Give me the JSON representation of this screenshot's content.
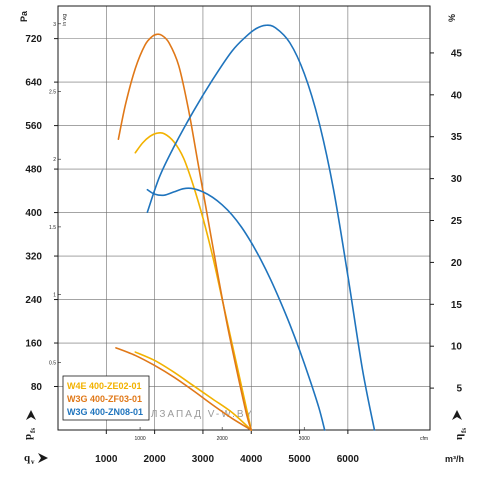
{
  "chart_data": {
    "type": "line",
    "units": {
      "left": "Pa",
      "left_inner": "in wg",
      "right": "%",
      "bottom_inner": "cfm",
      "bottom": "m³/h"
    },
    "axis_symbols": {
      "pressure": "p",
      "pressure_sub": "fs",
      "flow": "q",
      "flow_sub": "v",
      "efficiency": "η",
      "efficiency_sub": "fs"
    },
    "ylim": [
      0,
      780
    ],
    "xlim": [
      0,
      7700
    ],
    "y_left_ticks": [
      80,
      160,
      240,
      320,
      400,
      480,
      560,
      640,
      720
    ],
    "y_inwg_ticks": [
      {
        "value": 0.5,
        "label": "0.5"
      },
      {
        "value": 1,
        "label": "1"
      },
      {
        "value": 1.5,
        "label": "1.5"
      },
      {
        "value": 2,
        "label": "2"
      },
      {
        "value": 2.5,
        "label": "2.5"
      },
      {
        "value": 3,
        "label": "3"
      }
    ],
    "y_right_ticks": [
      5,
      10,
      15,
      20,
      25,
      30,
      35,
      40,
      45
    ],
    "y_right_range": [
      0,
      50.6
    ],
    "x_m3h_ticks": [
      1000,
      2000,
      3000,
      4000,
      5000,
      6000
    ],
    "x_cfm_ticks": [
      {
        "value": 1000,
        "label": "1000"
      },
      {
        "value": 2000,
        "label": "2000"
      },
      {
        "value": 3000,
        "label": "3000"
      }
    ],
    "watermark": "ЭЛЗАПАД        V-W.BY",
    "series": [
      {
        "name": "W4E 400-ZE02-01",
        "color": "#f2b200",
        "pressure": [
          [
            1600,
            510
          ],
          [
            1750,
            528
          ],
          [
            1900,
            540
          ],
          [
            2050,
            546
          ],
          [
            2200,
            545
          ],
          [
            2400,
            530
          ],
          [
            2600,
            500
          ],
          [
            2800,
            450
          ],
          [
            3000,
            390
          ],
          [
            3200,
            320
          ],
          [
            3400,
            240
          ],
          [
            3600,
            160
          ],
          [
            3800,
            80
          ],
          [
            4000,
            0
          ]
        ],
        "efficiency": [
          [
            1600,
            9.3
          ],
          [
            2000,
            8.3
          ],
          [
            2400,
            6.9
          ],
          [
            2800,
            5.3
          ],
          [
            3200,
            3.7
          ],
          [
            3600,
            2.1
          ],
          [
            4000,
            0
          ]
        ]
      },
      {
        "name": "W3G 400-ZF03-01",
        "color": "#e07818",
        "pressure": [
          [
            1250,
            535
          ],
          [
            1400,
            600
          ],
          [
            1600,
            665
          ],
          [
            1800,
            708
          ],
          [
            1950,
            724
          ],
          [
            2050,
            728
          ],
          [
            2150,
            726
          ],
          [
            2300,
            712
          ],
          [
            2500,
            670
          ],
          [
            2700,
            590
          ],
          [
            2900,
            490
          ],
          [
            3100,
            390
          ],
          [
            3300,
            290
          ],
          [
            3500,
            195
          ],
          [
            3700,
            110
          ],
          [
            3900,
            30
          ],
          [
            4000,
            0
          ]
        ],
        "efficiency": [
          [
            1200,
            9.8
          ],
          [
            1600,
            8.9
          ],
          [
            2000,
            7.7
          ],
          [
            2400,
            6.3
          ],
          [
            2800,
            4.7
          ],
          [
            3200,
            3.0
          ],
          [
            3600,
            1.4
          ],
          [
            4000,
            0
          ]
        ]
      },
      {
        "name": "W3G 400-ZN08-01",
        "color": "#1f74bd",
        "pressure": [
          [
            1850,
            442
          ],
          [
            2000,
            434
          ],
          [
            2200,
            432
          ],
          [
            2400,
            438
          ],
          [
            2600,
            444
          ],
          [
            2800,
            444
          ],
          [
            3000,
            438
          ],
          [
            3200,
            428
          ],
          [
            3400,
            414
          ],
          [
            3600,
            396
          ],
          [
            3800,
            373
          ],
          [
            4000,
            345
          ],
          [
            4200,
            313
          ],
          [
            4400,
            277
          ],
          [
            4600,
            237
          ],
          [
            4800,
            194
          ],
          [
            5000,
            147
          ],
          [
            5200,
            96
          ],
          [
            5400,
            41
          ],
          [
            5520,
            0
          ]
        ],
        "efficiency": [
          [
            1850,
            26.0
          ],
          [
            2100,
            30.2
          ],
          [
            2400,
            33.8
          ],
          [
            2800,
            38.0
          ],
          [
            3200,
            41.8
          ],
          [
            3600,
            45.2
          ],
          [
            3900,
            47.0
          ],
          [
            4100,
            47.9
          ],
          [
            4300,
            48.3
          ],
          [
            4500,
            48.0
          ],
          [
            4800,
            46.2
          ],
          [
            5100,
            42.5
          ],
          [
            5400,
            36.8
          ],
          [
            5700,
            28.8
          ],
          [
            6000,
            18.4
          ],
          [
            6300,
            7.3
          ],
          [
            6550,
            0
          ]
        ]
      }
    ]
  }
}
